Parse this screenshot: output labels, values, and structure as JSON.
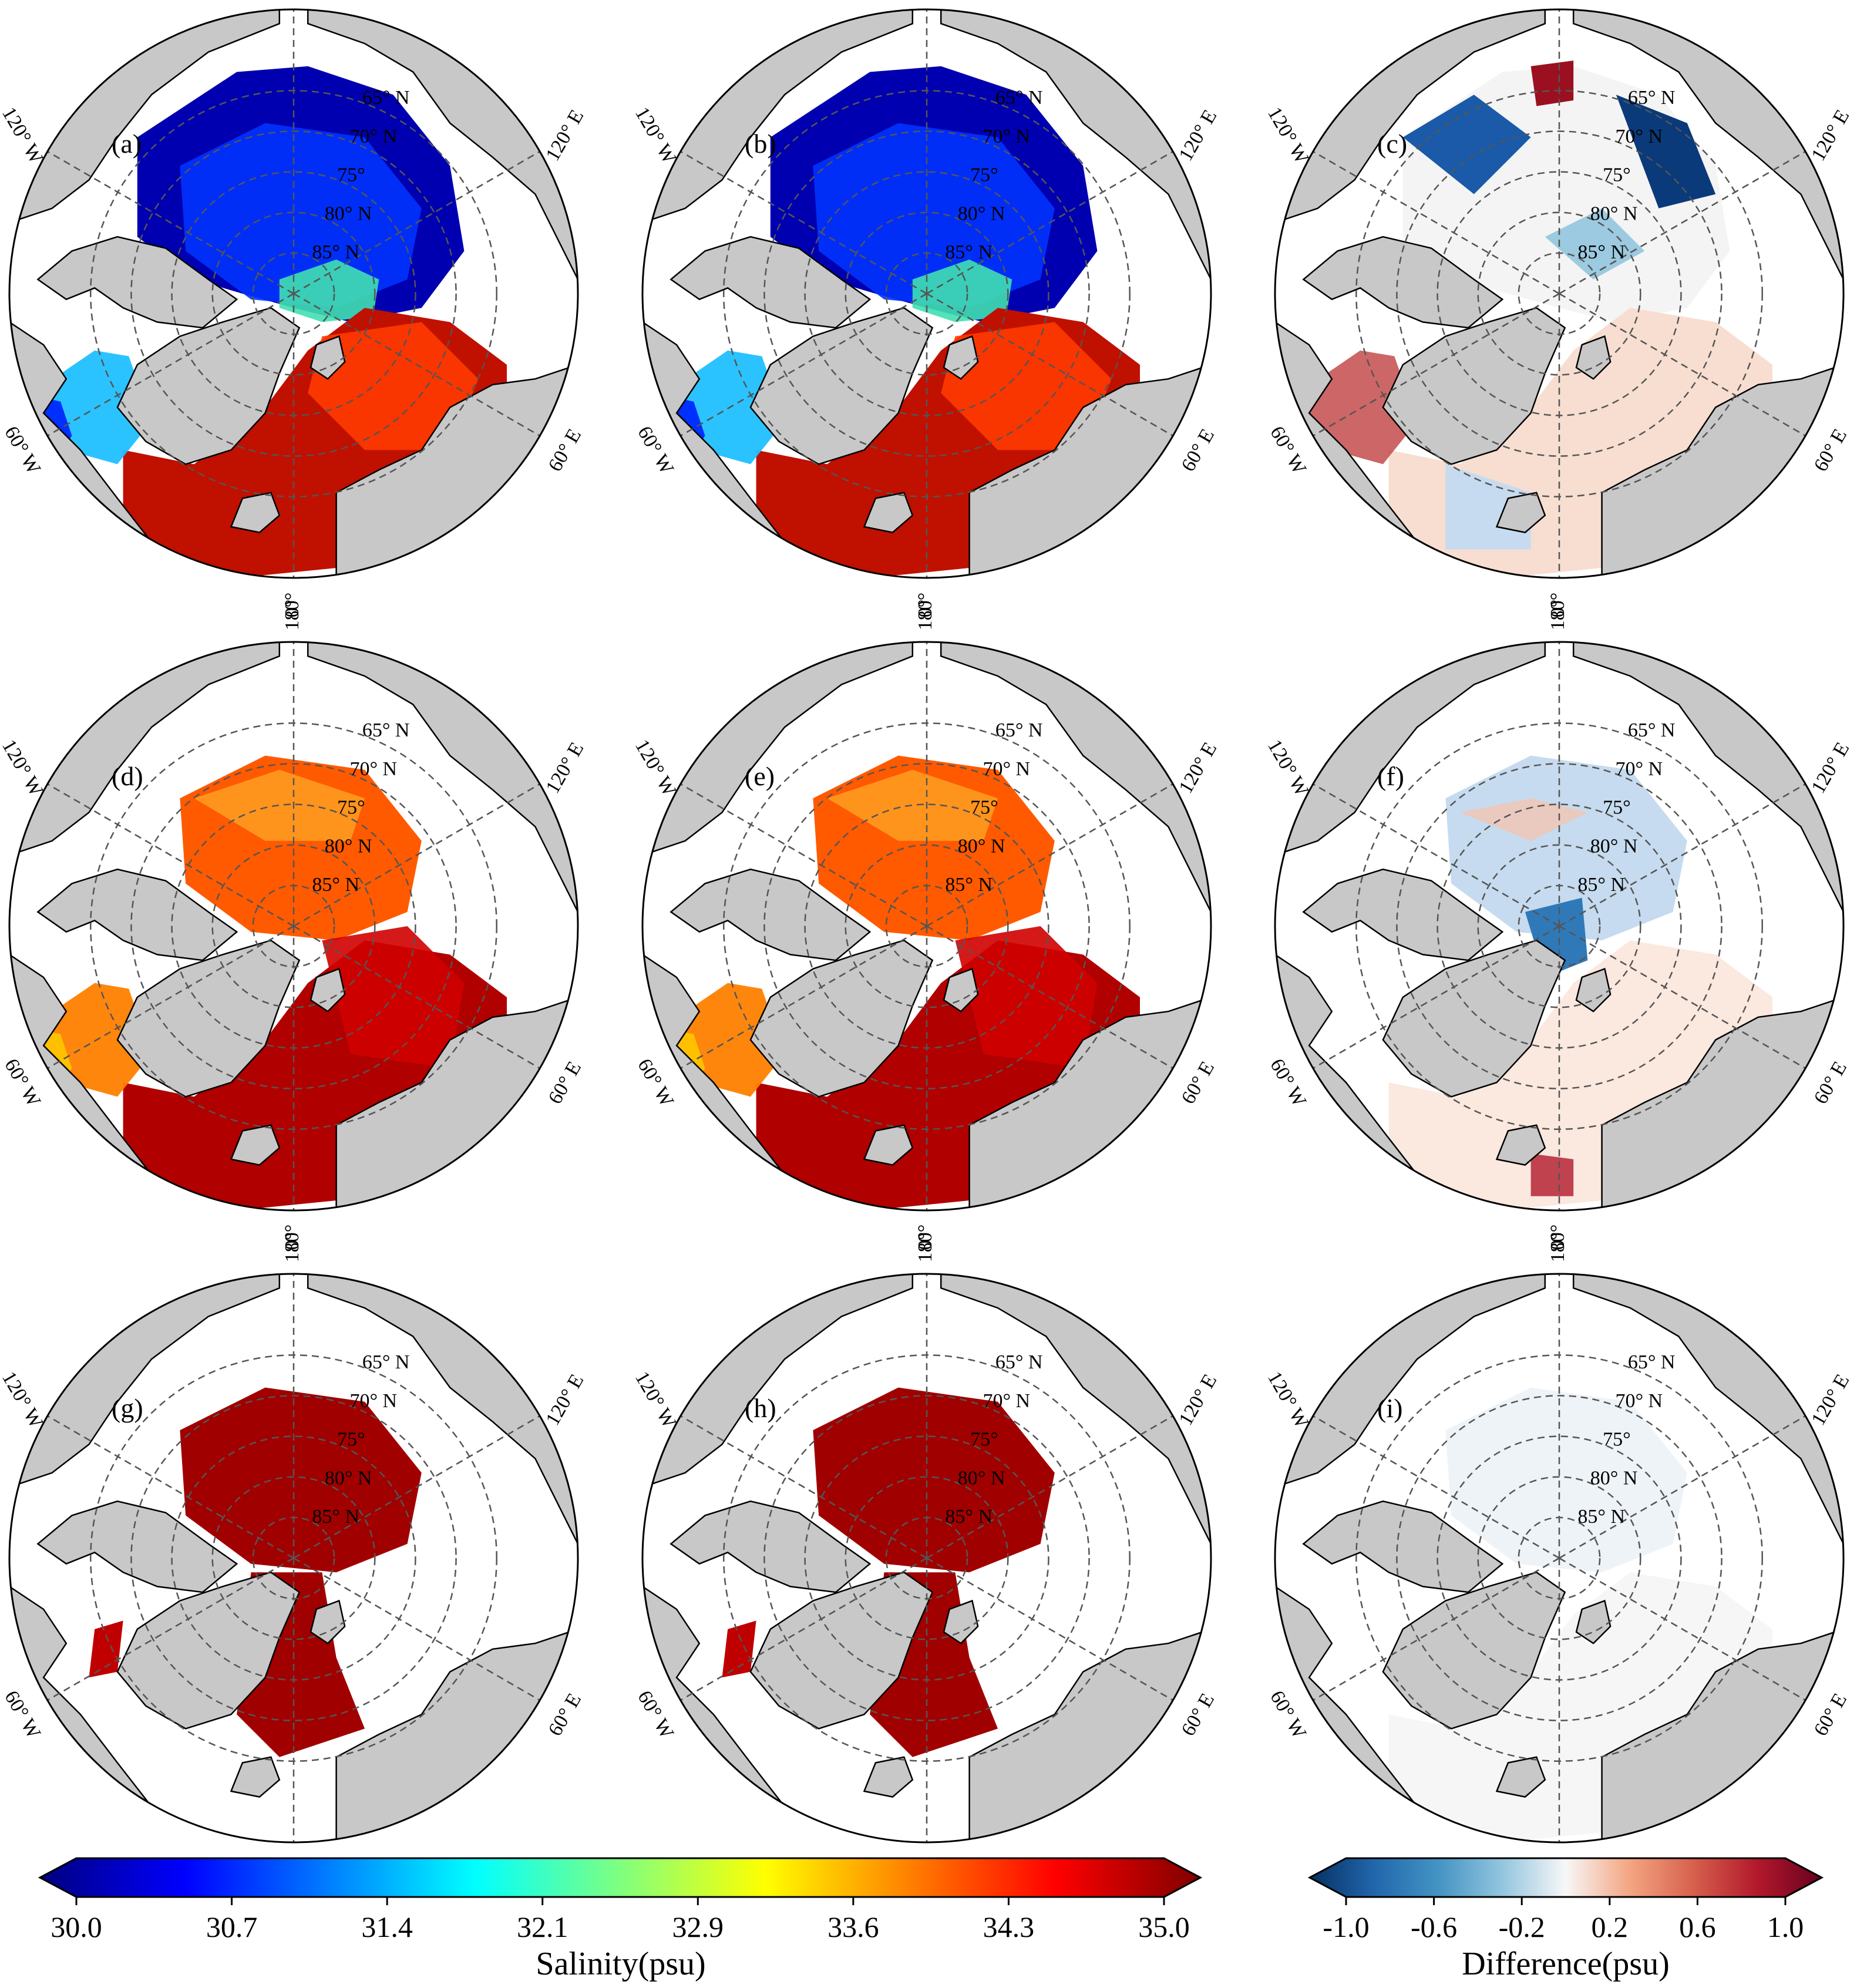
{
  "figure": {
    "panels": [
      {
        "id": "a",
        "label": "(a)",
        "variant": "sss-low"
      },
      {
        "id": "b",
        "label": "(b)",
        "variant": "sss-low"
      },
      {
        "id": "c",
        "label": "(c)",
        "variant": "diff-strong"
      },
      {
        "id": "d",
        "label": "(d)",
        "variant": "sss-mid"
      },
      {
        "id": "e",
        "label": "(e)",
        "variant": "sss-mid"
      },
      {
        "id": "f",
        "label": "(f)",
        "variant": "diff-mid"
      },
      {
        "id": "g",
        "label": "(g)",
        "variant": "sss-deep"
      },
      {
        "id": "h",
        "label": "(h)",
        "variant": "sss-deep"
      },
      {
        "id": "i",
        "label": "(i)",
        "variant": "diff-weak"
      }
    ],
    "graticule": {
      "longitude_labels": [
        "180°",
        "120° E",
        "60° E",
        "0°",
        "60° W",
        "120° W"
      ],
      "latitude_labels": [
        "65° N",
        "70° N",
        "75°",
        "80° N",
        "85° N"
      ]
    },
    "colors": {
      "land": "#c8c8c8",
      "ocean_blank": "#ffffff",
      "grid": "#555555"
    }
  },
  "salinity_colorbar": {
    "title": "Salinity(psu)",
    "ticks": [
      "30.0",
      "30.7",
      "31.4",
      "32.1",
      "32.9",
      "33.6",
      "34.3",
      "35.0"
    ],
    "range": [
      30.0,
      35.0
    ],
    "stops": [
      "#00007f",
      "#0000ff",
      "#007fff",
      "#00ffff",
      "#7fff7f",
      "#ffff00",
      "#ff7f00",
      "#ff0000",
      "#7f0000"
    ]
  },
  "difference_colorbar": {
    "title": "Difference(psu)",
    "ticks": [
      "-1.0",
      "-0.6",
      "-0.2",
      "0.2",
      "0.6",
      "1.0"
    ],
    "range": [
      -1.0,
      1.0
    ],
    "stops": [
      "#053061",
      "#2166ac",
      "#4393c3",
      "#92c5de",
      "#f7f7f7",
      "#f4a582",
      "#d6604d",
      "#b2182b",
      "#67001f"
    ]
  }
}
